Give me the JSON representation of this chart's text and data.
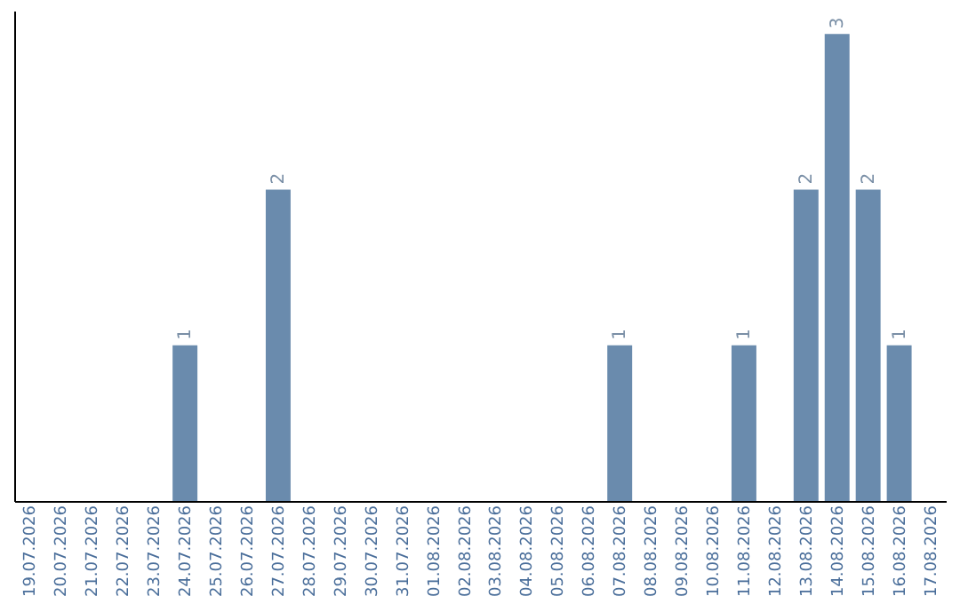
{
  "chart_data": {
    "type": "bar",
    "categories": [
      "19.07.2026",
      "20.07.2026",
      "21.07.2026",
      "22.07.2026",
      "23.07.2026",
      "24.07.2026",
      "25.07.2026",
      "26.07.2026",
      "27.07.2026",
      "28.07.2026",
      "29.07.2026",
      "30.07.2026",
      "31.07.2026",
      "01.08.2026",
      "02.08.2026",
      "03.08.2026",
      "04.08.2026",
      "05.08.2026",
      "06.08.2026",
      "07.08.2026",
      "08.08.2026",
      "09.08.2026",
      "10.08.2026",
      "11.08.2026",
      "12.08.2026",
      "13.08.2026",
      "14.08.2026",
      "15.08.2026",
      "16.08.2026",
      "17.08.2026"
    ],
    "values": [
      0,
      0,
      0,
      0,
      0,
      1,
      0,
      0,
      2,
      0,
      0,
      0,
      0,
      0,
      0,
      0,
      0,
      0,
      0,
      1,
      0,
      0,
      0,
      1,
      0,
      2,
      3,
      2,
      1,
      0
    ],
    "value_labels": [
      null,
      null,
      null,
      null,
      null,
      "1",
      null,
      null,
      "2",
      null,
      null,
      null,
      null,
      null,
      null,
      null,
      null,
      null,
      null,
      "1",
      null,
      null,
      null,
      "1",
      null,
      "2",
      "3",
      "2",
      "1",
      null
    ],
    "color": "#6a8bad",
    "tick_labels": "x",
    "grid": false
  }
}
